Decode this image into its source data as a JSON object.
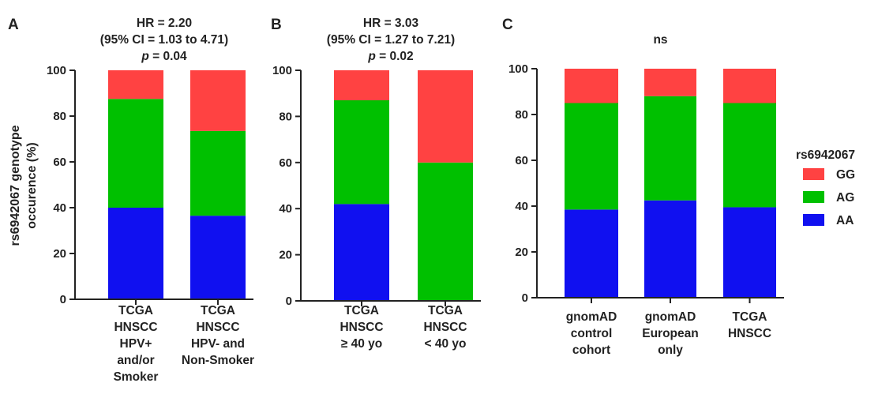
{
  "y_axis_label": [
    "rs6942067 genotype",
    "occurence (%)"
  ],
  "legend": {
    "title": "rs6942067",
    "items": [
      {
        "label": "GG",
        "color": "#ff4242"
      },
      {
        "label": "AG",
        "color": "#00c000"
      },
      {
        "label": "AA",
        "color": "#1010f0"
      }
    ]
  },
  "chart_data": [
    {
      "type": "bar",
      "stacked": true,
      "panel": "A",
      "annotation": [
        "HR = 2.20",
        "(95%  CI = 1.03 to 4.71)",
        "p = 0.04"
      ],
      "categories": [
        [
          "TCGA",
          "HNSCC",
          "HPV+",
          "and/or",
          "Smoker"
        ],
        [
          "TCGA",
          "HNSCC",
          "HPV- and",
          "Non-Smoker"
        ]
      ],
      "series": [
        {
          "name": "AA",
          "values": [
            40,
            36.5
          ]
        },
        {
          "name": "AG",
          "values": [
            47.5,
            37
          ]
        },
        {
          "name": "GG",
          "values": [
            12.5,
            26.5
          ]
        }
      ],
      "ylim": [
        0,
        100
      ],
      "yticks": [
        0,
        20,
        40,
        60,
        80,
        100
      ]
    },
    {
      "type": "bar",
      "stacked": true,
      "panel": "B",
      "annotation": [
        "HR = 3.03",
        "(95%  CI = 1.27 to 7.21)",
        "p = 0.02"
      ],
      "categories": [
        [
          "TCGA",
          "HNSCC",
          "≥ 40 yo"
        ],
        [
          "TCGA",
          "HNSCC",
          "< 40 yo"
        ]
      ],
      "series": [
        {
          "name": "AA",
          "values": [
            42,
            0
          ]
        },
        {
          "name": "AG",
          "values": [
            45,
            60
          ]
        },
        {
          "name": "GG",
          "values": [
            13,
            40
          ]
        }
      ],
      "ylim": [
        0,
        100
      ],
      "yticks": [
        0,
        20,
        40,
        60,
        80,
        100
      ]
    },
    {
      "type": "bar",
      "stacked": true,
      "panel": "C",
      "annotation": [
        "ns"
      ],
      "categories": [
        [
          "gnomAD",
          "control",
          "cohort"
        ],
        [
          "gnomAD",
          "European",
          "only"
        ],
        [
          "TCGA",
          "HNSCC"
        ]
      ],
      "series": [
        {
          "name": "AA",
          "values": [
            38.5,
            42.5,
            39.5
          ]
        },
        {
          "name": "AG",
          "values": [
            46.5,
            45.5,
            45.5
          ]
        },
        {
          "name": "GG",
          "values": [
            15,
            12,
            15
          ]
        }
      ],
      "ylim": [
        0,
        100
      ],
      "yticks": [
        0,
        20,
        40,
        60,
        80,
        100
      ]
    }
  ]
}
